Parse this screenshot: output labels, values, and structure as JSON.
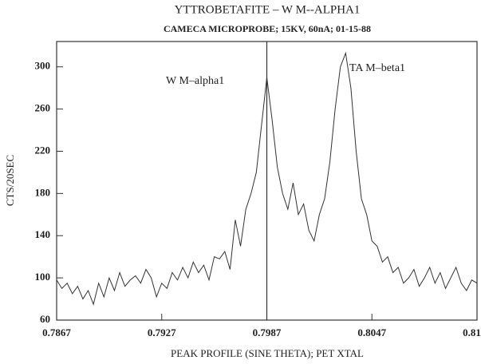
{
  "chart_data": {
    "type": "line",
    "title": "YTTROBETAFITE – W M--ALPHA1",
    "subtitle": "CAMECA MICROPROBE; 15KV, 60nA; 01-15-88",
    "x_label": "PEAK PROFILE (SINE THETA); PET XTAL",
    "y_label": "CTS/20SEC",
    "annotations": [
      "W M–alpha1",
      "TA M–beta1"
    ],
    "marker_line": 0.7987,
    "x": [
      0.7867,
      0.787,
      0.7873,
      0.7876,
      0.7879,
      0.7882,
      0.7885,
      0.7888,
      0.7891,
      0.7894,
      0.7897,
      0.79,
      0.7903,
      0.7906,
      0.7909,
      0.7912,
      0.7915,
      0.7918,
      0.7921,
      0.7924,
      0.7927,
      0.793,
      0.7933,
      0.7936,
      0.7939,
      0.7942,
      0.7945,
      0.7948,
      0.7951,
      0.7954,
      0.7957,
      0.796,
      0.7963,
      0.7966,
      0.7969,
      0.7972,
      0.7975,
      0.7978,
      0.7981,
      0.7984,
      0.7987,
      0.799,
      0.7993,
      0.7996,
      0.7999,
      0.8002,
      0.8005,
      0.8008,
      0.8011,
      0.8014,
      0.8017,
      0.802,
      0.8023,
      0.8026,
      0.8029,
      0.8032,
      0.8035,
      0.8038,
      0.8041,
      0.8044,
      0.8047,
      0.805,
      0.8053,
      0.8056,
      0.8059,
      0.8062,
      0.8065,
      0.8068,
      0.8071,
      0.8074,
      0.8077,
      0.808,
      0.8083,
      0.8086,
      0.8089,
      0.8092,
      0.8095,
      0.8098,
      0.8101,
      0.8104,
      0.8107
    ],
    "series": [
      {
        "name": "counts",
        "color": "#333333",
        "values": [
          98,
          90,
          95,
          85,
          92,
          80,
          88,
          75,
          95,
          82,
          100,
          88,
          105,
          92,
          98,
          102,
          95,
          108,
          100,
          82,
          95,
          90,
          105,
          98,
          110,
          100,
          115,
          105,
          112,
          98,
          120,
          118,
          125,
          108,
          155,
          130,
          165,
          180,
          200,
          245,
          290,
          250,
          205,
          180,
          165,
          190,
          160,
          170,
          145,
          135,
          160,
          175,
          210,
          260,
          300,
          313,
          280,
          220,
          175,
          160,
          135,
          130,
          115,
          120,
          105,
          110,
          95,
          100,
          108,
          92,
          100,
          110,
          95,
          105,
          90,
          100,
          110,
          95,
          88,
          98,
          95
        ]
      }
    ],
    "xlim": [
      0.7867,
      0.8107
    ],
    "ylim": [
      60,
      324
    ],
    "xticks": [
      0.7867,
      0.7927,
      0.7987,
      0.8047,
      0.8107
    ],
    "yticks": [
      60,
      100,
      140,
      180,
      220,
      260,
      300
    ],
    "grid": false
  }
}
